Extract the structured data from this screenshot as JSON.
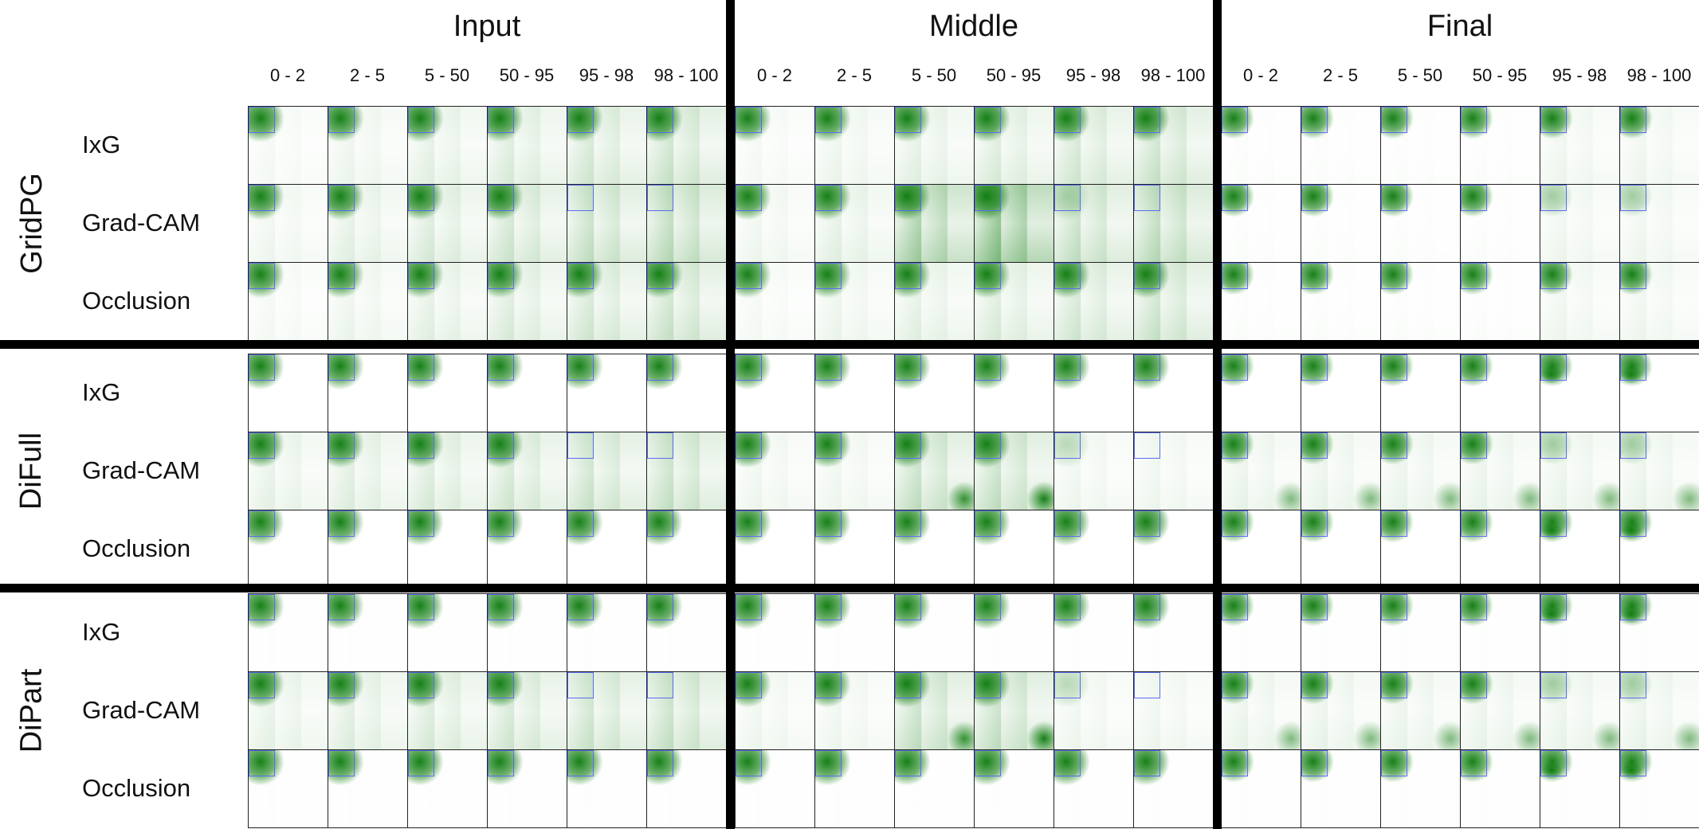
{
  "sections": [
    "Input",
    "Middle",
    "Final"
  ],
  "columns": [
    "0 - 2",
    "2 - 5",
    "5 - 50",
    "50 - 95",
    "95 - 98",
    "98 - 100"
  ],
  "methods": [
    {
      "name": "GridPG",
      "rows": [
        "IxG",
        "Grad-CAM",
        "Occlusion"
      ]
    },
    {
      "name": "DiFull",
      "rows": [
        "IxG",
        "Grad-CAM",
        "Occlusion"
      ]
    },
    {
      "name": "DiPart",
      "rows": [
        "IxG",
        "Grad-CAM",
        "Occlusion"
      ]
    }
  ],
  "colors": {
    "heatmap": "#0a7a0a",
    "bbox": "#5a6cf0",
    "separator": "#000000"
  }
}
